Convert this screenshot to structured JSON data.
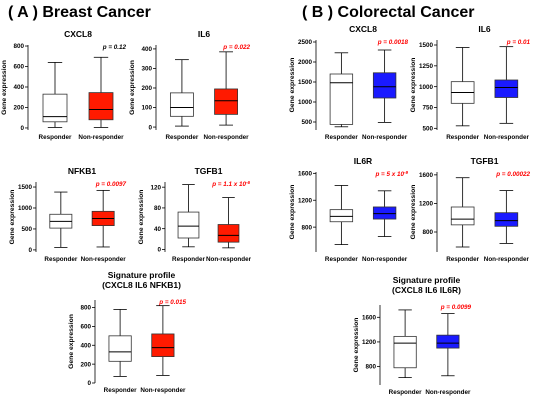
{
  "sections": [
    {
      "title": "( A ) Breast Cancer"
    },
    {
      "title": "( B ) Colorectal Cancer"
    }
  ],
  "colors": {
    "responder": "#ffffff",
    "breast_nonresponder": "#ff1a00",
    "colorectal_nonresponder": "#1a1aff",
    "pvalue_significant": "#ff0000",
    "pvalue_ns": "#000000"
  },
  "chart_data": [
    {
      "type": "box",
      "section": "A",
      "title": "CXCL8",
      "subtitle": "",
      "ylabel": "Gene expression",
      "categories": [
        "Responder",
        "Non-responder"
      ],
      "ylim": [
        -20,
        810
      ],
      "yticks": [
        "0",
        "200",
        "400",
        "600",
        "800"
      ],
      "pvalue": "p = 0.12",
      "pvalue_significant": false,
      "boxes": [
        {
          "name": "Responder",
          "min": 5,
          "q1": 60,
          "median": 110,
          "q3": 330,
          "max": 640,
          "fill": "#ffffff"
        },
        {
          "name": "Non-responder",
          "min": 5,
          "q1": 80,
          "median": 180,
          "q3": 345,
          "max": 690,
          "fill": "#ff1a00"
        }
      ]
    },
    {
      "type": "box",
      "section": "A",
      "title": "IL6",
      "subtitle": "",
      "ylabel": "Gene expression",
      "categories": [
        "Responder",
        "Non-responder"
      ],
      "ylim": [
        -15,
        420
      ],
      "yticks": [
        "0",
        "100",
        "200",
        "300",
        "400"
      ],
      "pvalue": "p = 0.022",
      "pvalue_significant": true,
      "boxes": [
        {
          "name": "Responder",
          "min": 5,
          "q1": 55,
          "median": 100,
          "q3": 175,
          "max": 345,
          "fill": "#ffffff"
        },
        {
          "name": "Non-responder",
          "min": 10,
          "q1": 65,
          "median": 135,
          "q3": 195,
          "max": 385,
          "fill": "#ff1a00"
        }
      ]
    },
    {
      "type": "box",
      "section": "A",
      "title": "NFKB1",
      "subtitle": "",
      "ylabel": "Gene expression",
      "categories": [
        "Responder",
        "Non-responder"
      ],
      "ylim": [
        -50,
        1620
      ],
      "yticks": [
        "0",
        "500",
        "1000",
        "1500"
      ],
      "pvalue": "p = 0.0097",
      "pvalue_significant": true,
      "boxes": [
        {
          "name": "Responder",
          "min": 60,
          "q1": 520,
          "median": 680,
          "q3": 850,
          "max": 1380,
          "fill": "#ffffff"
        },
        {
          "name": "Non-responder",
          "min": 70,
          "q1": 580,
          "median": 750,
          "q3": 920,
          "max": 1420,
          "fill": "#ff1a00"
        }
      ]
    },
    {
      "type": "box",
      "section": "A",
      "title": "TGFB1",
      "subtitle": "",
      "ylabel": "Gene expression",
      "categories": [
        "Responder",
        "Non-responder"
      ],
      "ylim": [
        -5,
        130
      ],
      "yticks": [
        "0",
        "40",
        "80",
        "120"
      ],
      "pvalue": "p = 1.1 x 10",
      "pvalue_exp": "-6",
      "pvalue_significant": true,
      "boxes": [
        {
          "name": "Responder",
          "min": 5,
          "q1": 22,
          "median": 45,
          "q3": 72,
          "max": 125,
          "fill": "#ffffff"
        },
        {
          "name": "Non-responder",
          "min": 3,
          "q1": 14,
          "median": 27,
          "q3": 48,
          "max": 100,
          "fill": "#ff1a00"
        }
      ]
    },
    {
      "type": "box",
      "section": "A",
      "title": "Signature profile",
      "subtitle": "(CXCL8 IL6 NFKB1)",
      "ylabel": "Gene expression",
      "categories": [
        "Responder",
        "Non-responder"
      ],
      "ylim": [
        0,
        880
      ],
      "yticks": [
        "0",
        "200",
        "400",
        "600",
        "800"
      ],
      "pvalue": "p = 0.015",
      "pvalue_significant": true,
      "boxes": [
        {
          "name": "Responder",
          "min": 70,
          "q1": 230,
          "median": 330,
          "q3": 500,
          "max": 780,
          "fill": "#ffffff"
        },
        {
          "name": "Non-responder",
          "min": 80,
          "q1": 280,
          "median": 375,
          "q3": 520,
          "max": 820,
          "fill": "#ff1a00"
        }
      ]
    },
    {
      "type": "box",
      "section": "B",
      "title": "CXCL8",
      "subtitle": "",
      "ylabel": "Gene expression",
      "categories": [
        "Responder",
        "Non-responder"
      ],
      "ylim": [
        300,
        2550
      ],
      "yticks": [
        "500",
        "1000",
        "1500",
        "2000",
        "2500"
      ],
      "pvalue": "p = 0.0018",
      "pvalue_significant": true,
      "boxes": [
        {
          "name": "Responder",
          "min": 380,
          "q1": 440,
          "median": 1480,
          "q3": 1700,
          "max": 2230,
          "fill": "#ffffff"
        },
        {
          "name": "Non-responder",
          "min": 490,
          "q1": 1100,
          "median": 1380,
          "q3": 1730,
          "max": 2300,
          "fill": "#1a1aff"
        }
      ]
    },
    {
      "type": "box",
      "section": "B",
      "title": "IL6",
      "subtitle": "",
      "ylabel": "Gene expression",
      "categories": [
        "Responder",
        "Non-responder"
      ],
      "ylim": [
        480,
        1560
      ],
      "yticks": [
        "500",
        "750",
        "1000",
        "1250",
        "1500"
      ],
      "pvalue": "p = 0.01",
      "pvalue_significant": true,
      "boxes": [
        {
          "name": "Responder",
          "min": 530,
          "q1": 800,
          "median": 930,
          "q3": 1060,
          "max": 1470,
          "fill": "#ffffff"
        },
        {
          "name": "Non-responder",
          "min": 560,
          "q1": 870,
          "median": 990,
          "q3": 1080,
          "max": 1480,
          "fill": "#1a1aff"
        }
      ]
    },
    {
      "type": "box",
      "section": "B",
      "title": "IL6R",
      "subtitle": "",
      "ylabel": "Gene expression",
      "categories": [
        "Responder",
        "Non-responder"
      ],
      "ylim": [
        430,
        1620
      ],
      "yticks": [
        "800",
        "1200",
        "1600"
      ],
      "pvalue": "p = 5 x 10",
      "pvalue_exp": "-9",
      "pvalue_significant": true,
      "boxes": [
        {
          "name": "Responder",
          "min": 540,
          "q1": 880,
          "median": 960,
          "q3": 1060,
          "max": 1420,
          "fill": "#ffffff"
        },
        {
          "name": "Non-responder",
          "min": 660,
          "q1": 920,
          "median": 1000,
          "q3": 1100,
          "max": 1340,
          "fill": "#1a1aff"
        }
      ]
    },
    {
      "type": "box",
      "section": "B",
      "title": "TGFB1",
      "subtitle": "",
      "ylabel": "Gene expression",
      "categories": [
        "Responder",
        "Non-responder"
      ],
      "ylim": [
        520,
        1640
      ],
      "yticks": [
        "800",
        "1200",
        "1600"
      ],
      "pvalue": "p = 0.00022",
      "pvalue_significant": true,
      "boxes": [
        {
          "name": "Responder",
          "min": 590,
          "q1": 900,
          "median": 980,
          "q3": 1150,
          "max": 1560,
          "fill": "#ffffff"
        },
        {
          "name": "Non-responder",
          "min": 640,
          "q1": 880,
          "median": 960,
          "q3": 1070,
          "max": 1380,
          "fill": "#1a1aff"
        }
      ]
    },
    {
      "type": "box",
      "section": "B",
      "title": "Signature profile",
      "subtitle": "(CXCL8 IL6 IL6R)",
      "ylabel": "Gene expression",
      "categories": [
        "Responder",
        "Non-responder"
      ],
      "ylim": [
        500,
        1800
      ],
      "yticks": [
        "800",
        "1200",
        "1600"
      ],
      "pvalue": "p = 0.0099",
      "pvalue_significant": true,
      "boxes": [
        {
          "name": "Responder",
          "min": 620,
          "q1": 780,
          "median": 1180,
          "q3": 1290,
          "max": 1720,
          "fill": "#ffffff"
        },
        {
          "name": "Non-responder",
          "min": 650,
          "q1": 1100,
          "median": 1180,
          "q3": 1310,
          "max": 1660,
          "fill": "#1a1aff"
        }
      ]
    }
  ]
}
